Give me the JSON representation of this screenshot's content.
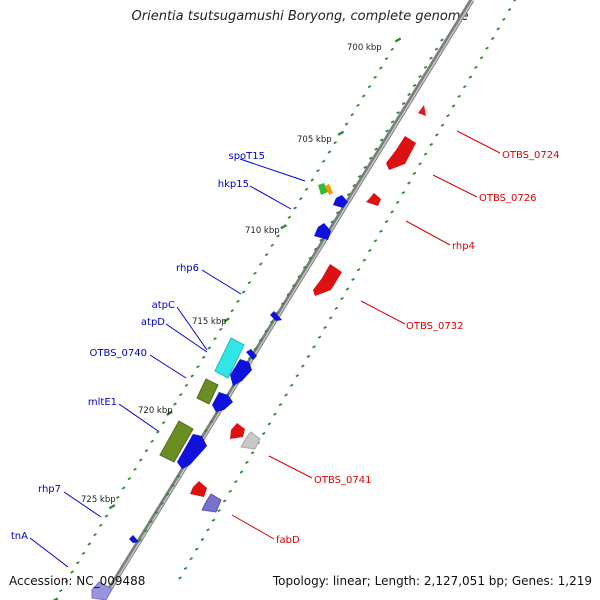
{
  "title": "Orientia tsutsugamushi Boryong, complete genome",
  "accession": "Accession: NC_009488",
  "summary": "Topology: linear; Length: 2,127,051 bp; Genes: 1,219",
  "colors": {
    "backbone": "#8a8a8a",
    "tick": "#2e8b2e",
    "forward_label": "#0000cc",
    "reverse_label": "#dd0000"
  },
  "ruler": [
    {
      "label": "700 kbp"
    },
    {
      "label": "705 kbp"
    },
    {
      "label": "710 kbp"
    },
    {
      "label": "715 kbp"
    },
    {
      "label": "720 kbp"
    },
    {
      "label": "725 kbp"
    }
  ],
  "forward_genes": [
    {
      "label": "spoT15"
    },
    {
      "label": "hkp15"
    },
    {
      "label": "rhp6"
    },
    {
      "label": "atpC"
    },
    {
      "label": "atpD"
    },
    {
      "label": "OTBS_0740"
    },
    {
      "label": "mltE1"
    },
    {
      "label": "rhp7"
    },
    {
      "label": "tnA"
    }
  ],
  "reverse_genes": [
    {
      "label": "OTBS_0724"
    },
    {
      "label": "OTBS_0726"
    },
    {
      "label": "rhp4"
    },
    {
      "label": "OTBS_0732"
    },
    {
      "label": "OTBS_0741"
    },
    {
      "label": "fabD"
    }
  ]
}
